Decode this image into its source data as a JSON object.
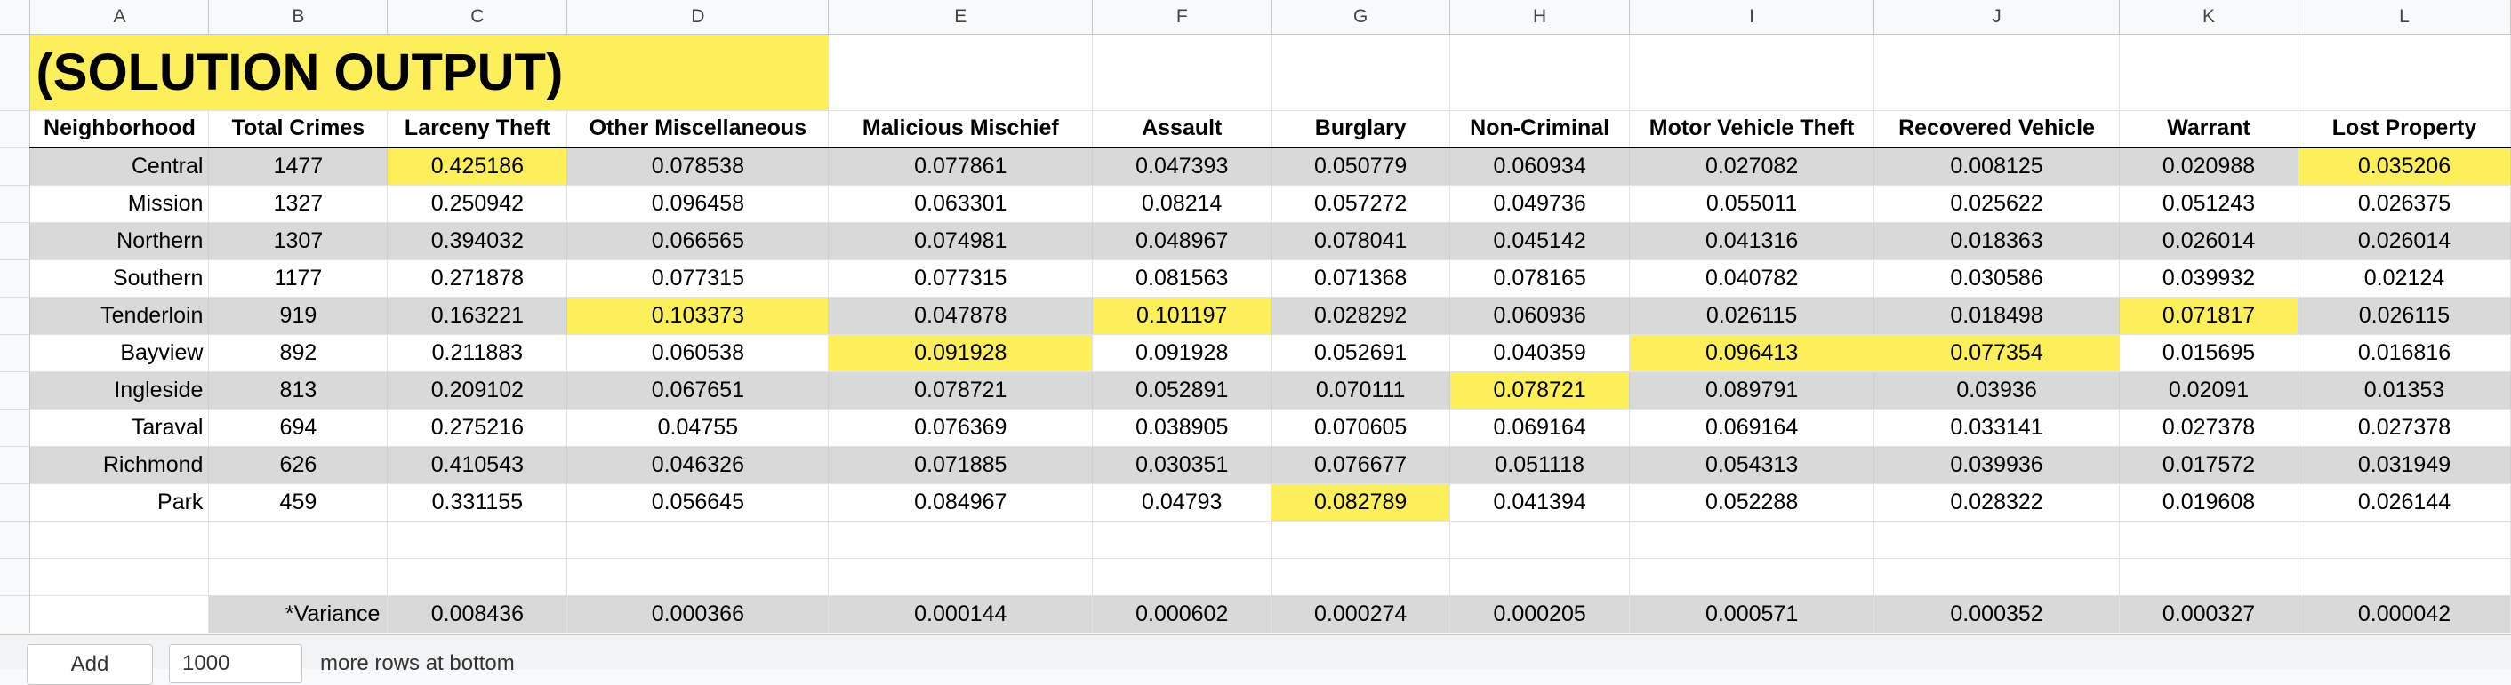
{
  "columns": [
    "A",
    "B",
    "C",
    "D",
    "E",
    "F",
    "G",
    "H",
    "I",
    "J",
    "K",
    "L"
  ],
  "title": "(SOLUTION OUTPUT)",
  "headers": [
    "Neighborhood",
    "Total Crimes",
    "Larceny Theft",
    "Other Miscellaneous",
    "Malicious Mischief",
    "Assault",
    "Burglary",
    "Non-Criminal",
    "Motor Vehicle Theft",
    "Recovered Vehicle",
    "Warrant",
    "Lost Property"
  ],
  "rows": [
    {
      "name": "Central",
      "values": [
        "1477",
        "0.425186",
        "0.078538",
        "0.077861",
        "0.047393",
        "0.050779",
        "0.060934",
        "0.027082",
        "0.008125",
        "0.020988",
        "0.035206"
      ],
      "highlight": [
        2,
        11
      ],
      "shaded": true
    },
    {
      "name": "Mission",
      "values": [
        "1327",
        "0.250942",
        "0.096458",
        "0.063301",
        "0.08214",
        "0.057272",
        "0.049736",
        "0.055011",
        "0.025622",
        "0.051243",
        "0.026375"
      ],
      "highlight": [],
      "shaded": false
    },
    {
      "name": "Northern",
      "values": [
        "1307",
        "0.394032",
        "0.066565",
        "0.074981",
        "0.048967",
        "0.078041",
        "0.045142",
        "0.041316",
        "0.018363",
        "0.026014",
        "0.026014"
      ],
      "highlight": [],
      "shaded": true
    },
    {
      "name": "Southern",
      "values": [
        "1177",
        "0.271878",
        "0.077315",
        "0.077315",
        "0.081563",
        "0.071368",
        "0.078165",
        "0.040782",
        "0.030586",
        "0.039932",
        "0.02124"
      ],
      "highlight": [],
      "shaded": false
    },
    {
      "name": "Tenderloin",
      "values": [
        "919",
        "0.163221",
        "0.103373",
        "0.047878",
        "0.101197",
        "0.028292",
        "0.060936",
        "0.026115",
        "0.018498",
        "0.071817",
        "0.026115"
      ],
      "highlight": [
        3,
        5,
        10
      ],
      "shaded": true
    },
    {
      "name": "Bayview",
      "values": [
        "892",
        "0.211883",
        "0.060538",
        "0.091928",
        "0.091928",
        "0.052691",
        "0.040359",
        "0.096413",
        "0.077354",
        "0.015695",
        "0.016816"
      ],
      "highlight": [
        4,
        8,
        9
      ],
      "shaded": false
    },
    {
      "name": "Ingleside",
      "values": [
        "813",
        "0.209102",
        "0.067651",
        "0.078721",
        "0.052891",
        "0.070111",
        "0.078721",
        "0.089791",
        "0.03936",
        "0.02091",
        "0.01353"
      ],
      "highlight": [
        7
      ],
      "shaded": true
    },
    {
      "name": "Taraval",
      "values": [
        "694",
        "0.275216",
        "0.04755",
        "0.076369",
        "0.038905",
        "0.070605",
        "0.069164",
        "0.069164",
        "0.033141",
        "0.027378",
        "0.027378"
      ],
      "highlight": [],
      "shaded": false
    },
    {
      "name": "Richmond",
      "values": [
        "626",
        "0.410543",
        "0.046326",
        "0.071885",
        "0.030351",
        "0.076677",
        "0.051118",
        "0.054313",
        "0.039936",
        "0.017572",
        "0.031949"
      ],
      "highlight": [],
      "shaded": true
    },
    {
      "name": "Park",
      "values": [
        "459",
        "0.331155",
        "0.056645",
        "0.084967",
        "0.04793",
        "0.082789",
        "0.041394",
        "0.052288",
        "0.028322",
        "0.019608",
        "0.026144"
      ],
      "highlight": [
        6
      ],
      "shaded": false
    }
  ],
  "variance": {
    "label": "*Variance",
    "values": [
      "0.008436",
      "0.000366",
      "0.000144",
      "0.000602",
      "0.000274",
      "0.000205",
      "0.000571",
      "0.000352",
      "0.000327",
      "0.000042"
    ]
  },
  "footer": {
    "add_label": "Add",
    "rows_value": "1000",
    "more_rows_label": "more rows at bottom"
  },
  "colors": {
    "highlight": "#fdef5a",
    "shaded_row": "#d9d9d9"
  }
}
